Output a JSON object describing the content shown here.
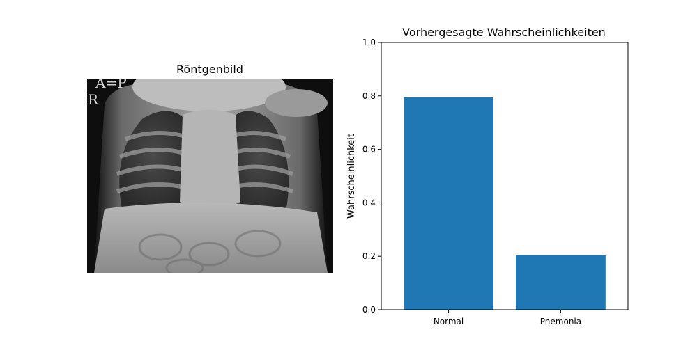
{
  "xray_panel": {
    "title": "Röntgenbild",
    "marker_ap": "A=P",
    "marker_r": "R"
  },
  "chart_data": {
    "type": "bar",
    "title": "Vorhergesagte Wahrscheinlichkeiten",
    "xlabel": "",
    "ylabel": "Wahrscheinlichkeit",
    "categories": [
      "Normal",
      "Pnemonia"
    ],
    "values": [
      0.795,
      0.205
    ],
    "ylim": [
      0,
      1.0
    ],
    "yticks": [
      "0.0",
      "0.2",
      "0.4",
      "0.6",
      "0.8",
      "1.0"
    ],
    "bar_color": "#1f77b4",
    "grid": false
  }
}
